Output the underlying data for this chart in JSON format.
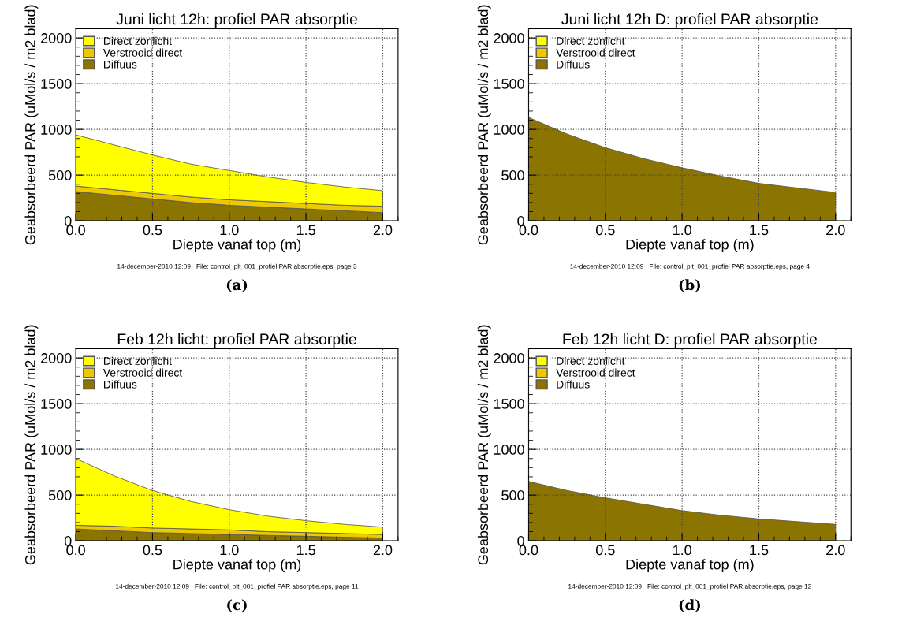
{
  "chart_data": [
    {
      "type": "area",
      "stacked": true,
      "title": "Juni licht 12h: profiel PAR absorptie",
      "xlabel": "Diepte vanaf top (m)",
      "ylabel": "Geabsorbeerd PAR (uMol/s / m2 blad)",
      "x": [
        0,
        0.25,
        0.5,
        0.75,
        1.0,
        1.25,
        1.5,
        1.75,
        2.0
      ],
      "series": [
        {
          "name": "Diffuus",
          "color": "#8b7500",
          "values": [
            320,
            280,
            240,
            200,
            170,
            150,
            130,
            110,
            90
          ]
        },
        {
          "name": "Verstrooid direct",
          "color": "#eec900",
          "values": [
            60,
            60,
            60,
            60,
            60,
            60,
            60,
            60,
            70
          ]
        },
        {
          "name": "Direct zonlicht",
          "color": "#ffff00",
          "values": [
            560,
            490,
            420,
            360,
            320,
            270,
            230,
            200,
            170
          ]
        }
      ],
      "xlim": [
        0,
        2.1
      ],
      "ylim": [
        0,
        2100
      ],
      "xticks": [
        {
          "value": 0,
          "label": "0.0"
        },
        {
          "value": 0.5,
          "label": "0.5"
        },
        {
          "value": 1.0,
          "label": "1.0"
        },
        {
          "value": 1.5,
          "label": "1.5"
        },
        {
          "value": 2.0,
          "label": "2.0"
        }
      ],
      "yticks": [
        0,
        500,
        1000,
        1500,
        2000
      ],
      "grid": true,
      "legend": "top left",
      "annotations": [
        "14-december-2010 12:09   File: control_plt_001_profiel PAR absorptie.eps, page 3",
        "(a)"
      ]
    },
    {
      "type": "area",
      "stacked": true,
      "title": "Juni licht 12h D: profiel PAR absorptie",
      "xlabel": "Diepte vanaf top (m)",
      "ylabel": "Geabsorbeerd PAR (uMol/s / m2 blad)",
      "x": [
        0,
        0.25,
        0.5,
        0.75,
        1.0,
        1.25,
        1.5,
        1.75,
        2.0
      ],
      "series": [
        {
          "name": "Diffuus",
          "color": "#8b7500",
          "values": [
            1130,
            950,
            800,
            680,
            580,
            490,
            410,
            360,
            310
          ]
        },
        {
          "name": "Verstrooid direct",
          "color": "#eec900",
          "values": [
            null,
            null,
            null,
            null,
            null,
            null,
            null,
            null,
            null
          ]
        },
        {
          "name": "Direct zonlicht",
          "color": "#ffff00",
          "values": [
            null,
            null,
            null,
            null,
            null,
            null,
            null,
            null,
            null
          ]
        }
      ],
      "xlim": [
        0,
        2.1
      ],
      "ylim": [
        0,
        2100
      ],
      "xticks": [
        {
          "value": 0,
          "label": "0.0"
        },
        {
          "value": 0.5,
          "label": "0.5"
        },
        {
          "value": 1.0,
          "label": "1.0"
        },
        {
          "value": 1.5,
          "label": "1.5"
        },
        {
          "value": 2.0,
          "label": "2.0"
        }
      ],
      "yticks": [
        0,
        500,
        1000,
        1500,
        2000
      ],
      "grid": true,
      "legend": "top left",
      "annotations": [
        "14-december-2010 12:09   File: control_plt_001_profiel PAR absorptie.eps, page 4",
        "(b)"
      ]
    },
    {
      "type": "area",
      "stacked": true,
      "title": "Feb 12h licht: profiel PAR absorptie",
      "xlabel": "Diepte vanaf top (m)",
      "ylabel": "Geabsorbeerd PAR (uMol/s / m2 blad)",
      "x": [
        0,
        0.25,
        0.5,
        0.75,
        1.0,
        1.25,
        1.5,
        1.75,
        2.0
      ],
      "series": [
        {
          "name": "Diffuus",
          "color": "#8b7500",
          "values": [
            130,
            110,
            90,
            80,
            70,
            60,
            50,
            40,
            30
          ]
        },
        {
          "name": "Verstrooid direct",
          "color": "#eec900",
          "values": [
            40,
            50,
            50,
            50,
            50,
            40,
            40,
            40,
            40
          ]
        },
        {
          "name": "Direct zonlicht",
          "color": "#ffff00",
          "values": [
            730,
            550,
            410,
            300,
            220,
            170,
            130,
            100,
            80
          ]
        }
      ],
      "xlim": [
        0,
        2.1
      ],
      "ylim": [
        0,
        2100
      ],
      "xticks": [
        {
          "value": 0,
          "label": "0.0"
        },
        {
          "value": 0.5,
          "label": "0.5"
        },
        {
          "value": 1.0,
          "label": "1.0"
        },
        {
          "value": 1.5,
          "label": "1.5"
        },
        {
          "value": 2.0,
          "label": "2.0"
        }
      ],
      "yticks": [
        0,
        500,
        1000,
        1500,
        2000
      ],
      "grid": true,
      "legend": "top left",
      "annotations": [
        "14-december-2010 12:09   File: control_plt_001_profiel PAR absorptie.eps, page 11",
        "(c)"
      ]
    },
    {
      "type": "area",
      "stacked": true,
      "title": "Feb 12h licht D: profiel PAR absorptie",
      "xlabel": "Diepte vanaf top (m)",
      "ylabel": "Geabsorbeerd PAR (uMol/s / m2 blad)",
      "x": [
        0,
        0.25,
        0.5,
        0.75,
        1.0,
        1.25,
        1.5,
        1.75,
        2.0
      ],
      "series": [
        {
          "name": "Diffuus",
          "color": "#8b7500",
          "values": [
            650,
            550,
            470,
            400,
            330,
            280,
            240,
            210,
            180
          ]
        },
        {
          "name": "Verstrooid direct",
          "color": "#eec900",
          "values": [
            null,
            null,
            null,
            null,
            null,
            null,
            null,
            null,
            null
          ]
        },
        {
          "name": "Direct zonlicht",
          "color": "#ffff00",
          "values": [
            null,
            null,
            null,
            null,
            null,
            null,
            null,
            null,
            null
          ]
        }
      ],
      "xlim": [
        0,
        2.1
      ],
      "ylim": [
        0,
        2100
      ],
      "xticks": [
        {
          "value": 0,
          "label": "0.0"
        },
        {
          "value": 0.5,
          "label": "0.5"
        },
        {
          "value": 1.0,
          "label": "1.0"
        },
        {
          "value": 1.5,
          "label": "1.5"
        },
        {
          "value": 2.0,
          "label": "2.0"
        }
      ],
      "yticks": [
        0,
        500,
        1000,
        1500,
        2000
      ],
      "grid": true,
      "legend": "top left",
      "annotations": [
        "14-december-2010 12:09   File: control_plt_001_profiel PAR absorptie.eps, page 12",
        "(d)"
      ]
    }
  ]
}
